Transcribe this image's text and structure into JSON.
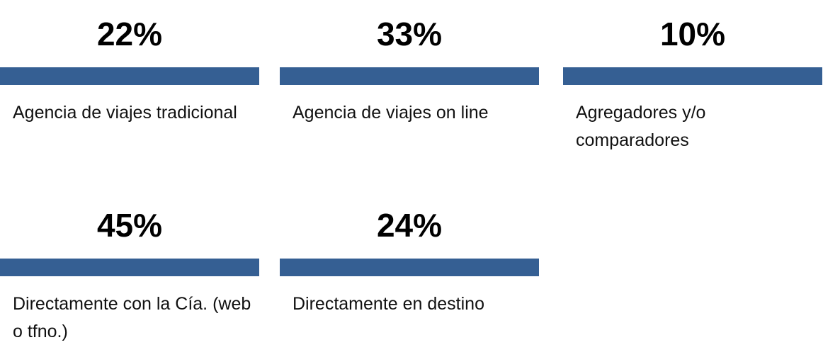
{
  "cards": [
    {
      "value": "22%",
      "label": "Agencia de viajes tradicional"
    },
    {
      "value": "33%",
      "label": "Agencia de viajes on line"
    },
    {
      "value": "10%",
      "label": "Agregadores y/o comparadores"
    },
    {
      "value": "45%",
      "label": "Directamente con la Cía. (web o tfno.)"
    },
    {
      "value": "24%",
      "label": "Directamente en destino"
    }
  ]
}
